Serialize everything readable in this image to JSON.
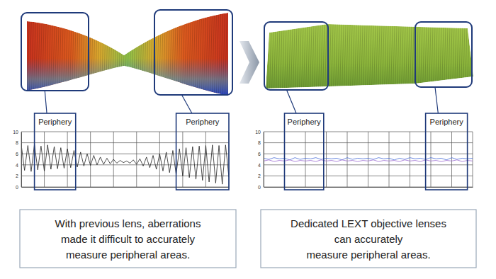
{
  "chart_data": [
    {
      "type": "line",
      "x": [
        0,
        1,
        2,
        3,
        4,
        5,
        6,
        7,
        8,
        9,
        10,
        11,
        12,
        13,
        14,
        15,
        16,
        17,
        18,
        19,
        20,
        21,
        22,
        23,
        24,
        25,
        26,
        27,
        28,
        29,
        30,
        31,
        32,
        33,
        34,
        35,
        36,
        37,
        38,
        39,
        40,
        41,
        42,
        43,
        44,
        45,
        46,
        47,
        48,
        49,
        50,
        51,
        52,
        53,
        54,
        55,
        56,
        57,
        58,
        59,
        60,
        61,
        62,
        63
      ],
      "series": [
        {
          "color": "#222222",
          "values": [
            7.6,
            3.0,
            7.5,
            2.8,
            7.7,
            3.1,
            7.4,
            2.9,
            7.6,
            3.2,
            7.3,
            3.3,
            7.1,
            3.4,
            6.9,
            3.5,
            6.6,
            3.6,
            6.3,
            3.8,
            6.0,
            3.9,
            5.7,
            4.0,
            5.4,
            4.1,
            5.2,
            4.2,
            5.0,
            4.3,
            4.8,
            4.4,
            4.7,
            4.3,
            4.9,
            4.1,
            5.1,
            3.8,
            5.4,
            3.5,
            5.7,
            3.2,
            6.0,
            2.9,
            6.3,
            2.6,
            6.6,
            2.3,
            6.9,
            2.0,
            7.1,
            1.7,
            7.3,
            1.4,
            7.4,
            1.2,
            7.5,
            0.9,
            7.6,
            0.7,
            7.5,
            0.5,
            7.6,
            1.8
          ]
        }
      ],
      "xlim": [
        0,
        63
      ],
      "xticks": [
        0,
        7,
        14,
        21,
        28,
        35,
        42,
        49,
        56,
        63
      ],
      "ylim": [
        0,
        10
      ],
      "yticks": [
        0,
        2,
        4,
        6,
        8,
        10
      ],
      "grid": true,
      "tick_labels": "y",
      "annotations": [
        {
          "text": "Periphery",
          "x": [
            4,
            16.5
          ]
        },
        {
          "text": "Periphery",
          "x": [
            47,
            63
          ]
        }
      ],
      "caption": [
        "With previous lens, aberrations",
        "made it difficult to accurately",
        "measure peripheral areas."
      ]
    },
    {
      "type": "line",
      "x": [
        0,
        1,
        2,
        3,
        4,
        5,
        6,
        7,
        8,
        9,
        10,
        11,
        12,
        13,
        14,
        15,
        16,
        17,
        18,
        19,
        20,
        21,
        22,
        23,
        24,
        25,
        26,
        27,
        28,
        29,
        30,
        31,
        32,
        33,
        34,
        35,
        36,
        37,
        38,
        39,
        40
      ],
      "series": [
        {
          "color": "#4a6fd8",
          "values": [
            5.2,
            5.0,
            5.3,
            5.1,
            5.2,
            4.9,
            5.3,
            5.0,
            5.2,
            5.1,
            5.3,
            5.0,
            5.2,
            5.1,
            5.2,
            4.9,
            5.3,
            5.0,
            5.2,
            5.1,
            5.2,
            5.0,
            5.3,
            5.1,
            5.2,
            4.9,
            5.2,
            5.0,
            5.3,
            5.1,
            5.2,
            5.0,
            5.3,
            5.1,
            5.2,
            4.9,
            5.3,
            5.0,
            5.2,
            5.1,
            5.2
          ]
        },
        {
          "color": "#9b6bd0",
          "values": [
            4.7,
            4.9,
            4.6,
            4.8,
            4.7,
            4.9,
            4.6,
            4.8,
            4.7,
            4.8,
            4.6,
            4.9,
            4.7,
            4.8,
            4.6,
            4.9,
            4.7,
            4.8,
            4.6,
            4.8,
            4.7,
            4.9,
            4.6,
            4.8,
            4.7,
            4.8,
            4.6,
            4.9,
            4.7,
            4.8,
            4.6,
            4.9,
            4.7,
            4.8,
            4.6,
            4.8,
            4.7,
            4.9,
            4.6,
            4.8,
            4.7
          ]
        }
      ],
      "xlim": [
        0,
        40
      ],
      "xticks": [
        0,
        4,
        8,
        12,
        16,
        20,
        24,
        28,
        32,
        36,
        40
      ],
      "ylim": [
        0,
        10
      ],
      "yticks": [
        0,
        2,
        4,
        6,
        8,
        10
      ],
      "grid": true,
      "tick_labels": "y",
      "annotations": [
        {
          "text": "Periphery",
          "x": [
            4,
            11.5
          ]
        },
        {
          "text": "Periphery",
          "x": [
            31,
            39
          ]
        }
      ],
      "caption": [
        "Dedicated LEXT objective lenses",
        "can accurately",
        "measure peripheral areas."
      ]
    }
  ]
}
